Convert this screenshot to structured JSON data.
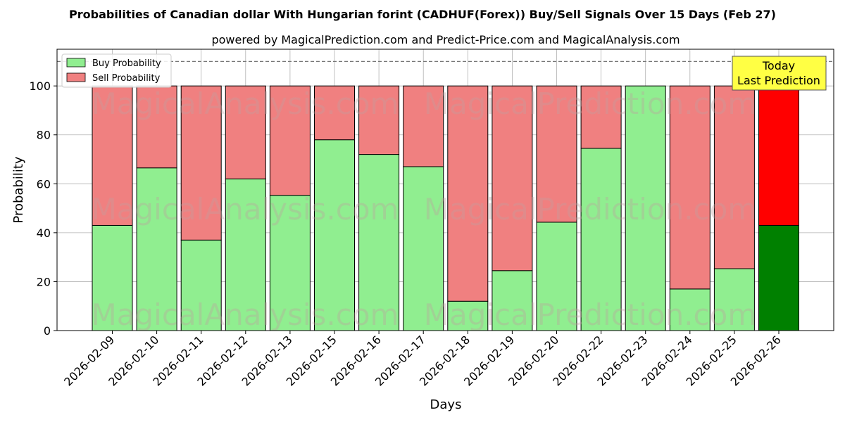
{
  "title": "Probabilities of Canadian dollar With Hungarian forint (CADHUF(Forex)) Buy/Sell Signals Over 15 Days (Feb 27)",
  "subtitle": "powered by MagicalPrediction.com and Predict-Price.com and MagicalAnalysis.com",
  "watermarks": [
    "MagicalAnalysis.com",
    "MagicalPrediction.com"
  ],
  "today_box": {
    "line1": "Today",
    "line2": "Last Prediction"
  },
  "colors": {
    "buy": "#90ee90",
    "sell": "#f08080",
    "buy_last": "#008000",
    "sell_last": "#ff0000",
    "today_box": "#ffff44"
  },
  "chart_data": {
    "type": "bar",
    "stacked": true,
    "xlabel": "Days",
    "ylabel": "Probability",
    "ylim": [
      0,
      115
    ],
    "yticks": [
      0,
      20,
      40,
      60,
      80,
      100
    ],
    "reference_line": 110,
    "grid": true,
    "legend_position": "top-left",
    "categories": [
      "2026-02-09",
      "2026-02-10",
      "2026-02-11",
      "2026-02-12",
      "2026-02-13",
      "2026-02-15",
      "2026-02-16",
      "2026-02-17",
      "2026-02-18",
      "2026-02-19",
      "2026-02-20",
      "2026-02-22",
      "2026-02-23",
      "2026-02-24",
      "2026-02-25",
      "2026-02-26"
    ],
    "series": [
      {
        "name": "Buy Probability",
        "values": [
          43,
          66.5,
          37,
          62,
          55.3,
          78,
          72,
          67,
          12,
          24.5,
          44.3,
          74.5,
          100,
          17,
          25.3,
          43
        ]
      },
      {
        "name": "Sell Probability",
        "values": [
          57,
          33.5,
          63,
          38,
          44.7,
          22,
          28,
          33,
          88,
          75.5,
          55.7,
          25.5,
          0,
          83,
          74.7,
          57
        ]
      }
    ]
  }
}
